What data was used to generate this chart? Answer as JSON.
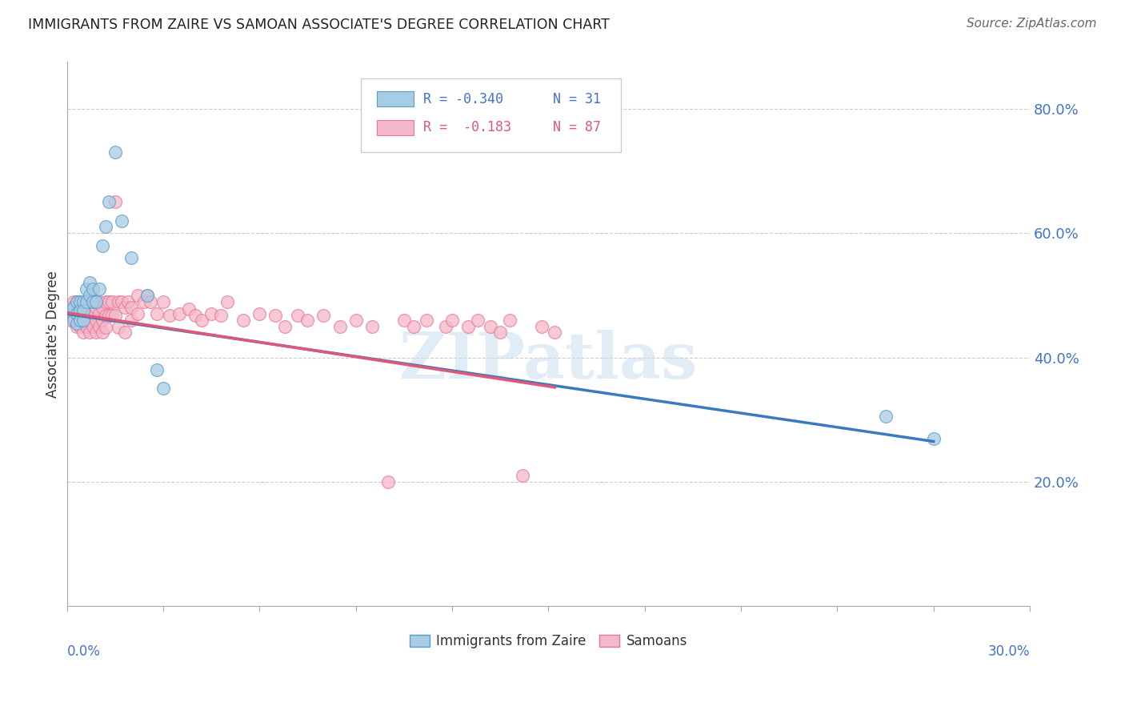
{
  "title": "IMMIGRANTS FROM ZAIRE VS SAMOAN ASSOCIATE'S DEGREE CORRELATION CHART",
  "source": "Source: ZipAtlas.com",
  "ylabel": "Associate's Degree",
  "watermark": "ZIPatlas",
  "blue_color": "#a8cce4",
  "pink_color": "#f4b8c8",
  "blue_edge_color": "#5b9dc9",
  "pink_edge_color": "#e8789a",
  "blue_line_color": "#3a7abf",
  "pink_line_color": "#e05878",
  "axis_color": "#4472c4",
  "title_color": "#222222",
  "xmin": 0.0,
  "xmax": 0.3,
  "ymin": 0.0,
  "ymax": 0.875,
  "blue_x": [
    0.001,
    0.002,
    0.002,
    0.003,
    0.003,
    0.003,
    0.004,
    0.004,
    0.004,
    0.005,
    0.005,
    0.005,
    0.006,
    0.006,
    0.007,
    0.007,
    0.008,
    0.008,
    0.009,
    0.01,
    0.011,
    0.012,
    0.013,
    0.015,
    0.017,
    0.02,
    0.025,
    0.028,
    0.03,
    0.255,
    0.27
  ],
  "blue_y": [
    0.475,
    0.48,
    0.46,
    0.49,
    0.47,
    0.455,
    0.49,
    0.475,
    0.46,
    0.49,
    0.475,
    0.46,
    0.51,
    0.49,
    0.52,
    0.5,
    0.51,
    0.49,
    0.49,
    0.51,
    0.58,
    0.61,
    0.65,
    0.73,
    0.62,
    0.56,
    0.5,
    0.38,
    0.35,
    0.305,
    0.27
  ],
  "pink_x": [
    0.001,
    0.001,
    0.002,
    0.002,
    0.003,
    0.003,
    0.003,
    0.004,
    0.004,
    0.004,
    0.005,
    0.005,
    0.005,
    0.006,
    0.006,
    0.006,
    0.007,
    0.007,
    0.007,
    0.008,
    0.008,
    0.008,
    0.009,
    0.009,
    0.009,
    0.01,
    0.01,
    0.01,
    0.011,
    0.011,
    0.011,
    0.012,
    0.012,
    0.012,
    0.013,
    0.013,
    0.014,
    0.014,
    0.015,
    0.015,
    0.016,
    0.016,
    0.017,
    0.018,
    0.018,
    0.019,
    0.02,
    0.02,
    0.022,
    0.022,
    0.024,
    0.025,
    0.026,
    0.028,
    0.03,
    0.032,
    0.035,
    0.038,
    0.04,
    0.042,
    0.045,
    0.048,
    0.05,
    0.055,
    0.06,
    0.065,
    0.068,
    0.072,
    0.075,
    0.08,
    0.085,
    0.09,
    0.095,
    0.1,
    0.105,
    0.108,
    0.112,
    0.118,
    0.12,
    0.125,
    0.128,
    0.132,
    0.135,
    0.138,
    0.142,
    0.148,
    0.152
  ],
  "pink_y": [
    0.48,
    0.46,
    0.49,
    0.465,
    0.49,
    0.47,
    0.45,
    0.49,
    0.47,
    0.45,
    0.48,
    0.46,
    0.44,
    0.49,
    0.47,
    0.45,
    0.48,
    0.46,
    0.44,
    0.49,
    0.47,
    0.45,
    0.48,
    0.46,
    0.44,
    0.49,
    0.47,
    0.45,
    0.48,
    0.46,
    0.44,
    0.49,
    0.468,
    0.448,
    0.49,
    0.468,
    0.49,
    0.468,
    0.65,
    0.468,
    0.49,
    0.448,
    0.49,
    0.48,
    0.44,
    0.49,
    0.48,
    0.46,
    0.5,
    0.47,
    0.49,
    0.5,
    0.49,
    0.47,
    0.49,
    0.468,
    0.47,
    0.478,
    0.468,
    0.46,
    0.47,
    0.468,
    0.49,
    0.46,
    0.47,
    0.468,
    0.45,
    0.468,
    0.46,
    0.468,
    0.45,
    0.46,
    0.45,
    0.2,
    0.46,
    0.45,
    0.46,
    0.45,
    0.46,
    0.45,
    0.46,
    0.45,
    0.44,
    0.46,
    0.21,
    0.45,
    0.44
  ],
  "blue_line_x0": 0.0,
  "blue_line_x1": 0.27,
  "blue_line_y0": 0.47,
  "blue_line_y1": 0.265,
  "pink_line_x0": 0.0,
  "pink_line_x1": 0.152,
  "pink_line_y0": 0.472,
  "pink_line_y1": 0.352
}
